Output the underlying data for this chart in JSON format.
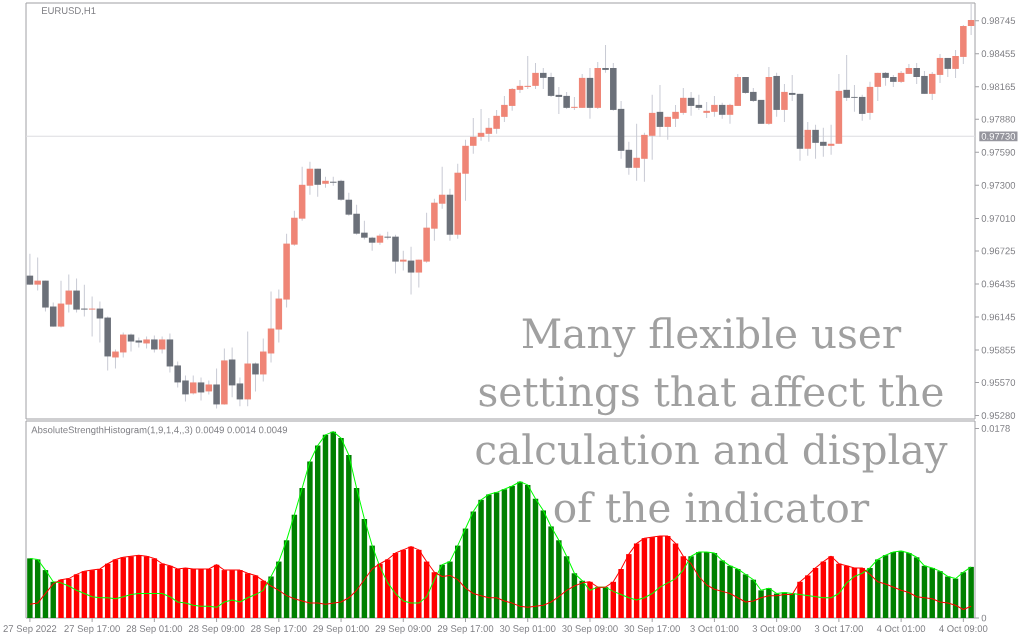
{
  "chart_data": [
    {
      "type": "candlestick",
      "title": "EURUSD,H1",
      "categories": [
        null,
        null,
        null,
        null,
        null,
        null,
        null,
        null,
        null,
        null,
        null,
        null,
        null,
        null,
        null,
        null,
        null,
        null,
        null,
        null,
        null,
        null,
        null,
        null,
        null,
        null,
        null,
        null,
        null,
        null,
        null,
        null,
        null,
        null,
        null,
        null,
        null,
        null,
        null,
        null,
        null,
        null,
        null,
        null,
        null,
        null,
        null,
        null,
        null,
        null,
        null,
        null,
        null,
        null,
        null,
        null,
        null,
        null,
        null,
        null,
        null,
        null,
        null,
        null,
        null,
        null,
        null,
        null,
        null,
        null,
        null,
        null,
        null,
        null,
        null,
        null,
        null,
        null,
        null,
        null,
        null,
        null,
        null,
        null,
        null,
        null,
        null,
        null,
        null,
        null,
        null,
        null,
        null,
        null,
        null,
        null,
        null,
        null,
        null,
        null,
        null,
        null,
        null,
        null,
        null,
        null,
        null,
        null,
        null,
        null,
        null,
        null,
        null,
        null,
        null,
        null,
        null,
        null,
        null,
        null,
        null,
        null
      ],
      "ohlc": [
        [
          0.96508,
          0.96701,
          0.96429,
          0.96429
        ],
        [
          0.96429,
          0.96666,
          0.96377,
          0.96464
        ],
        [
          0.96464,
          0.96464,
          0.96193,
          0.96228
        ],
        [
          0.96237,
          0.96272,
          0.96061,
          0.96061
        ],
        [
          0.96061,
          0.96464,
          0.96053,
          0.96263
        ],
        [
          0.96254,
          0.96517,
          0.96184,
          0.96377
        ],
        [
          0.96377,
          0.96482,
          0.96184,
          0.9621
        ],
        [
          0.96219,
          0.96429,
          0.96149,
          0.9621
        ],
        [
          0.9621,
          0.96324,
          0.95974,
          0.96219
        ],
        [
          0.96219,
          0.9628,
          0.95921,
          0.96132
        ],
        [
          0.9614,
          0.96149,
          0.95676,
          0.95799
        ],
        [
          0.9579,
          0.9586,
          0.95694,
          0.95842
        ],
        [
          0.95834,
          0.96009,
          0.9579,
          0.95991
        ],
        [
          0.95991,
          0.96,
          0.95842,
          0.9593
        ],
        [
          0.95939,
          0.95965,
          0.95878,
          0.95921
        ],
        [
          0.95913,
          0.95974,
          0.95869,
          0.95948
        ],
        [
          0.95948,
          0.95983,
          0.95834,
          0.9586
        ],
        [
          0.9586,
          0.95974,
          0.95825,
          0.95948
        ],
        [
          0.95948,
          0.96,
          0.95659,
          0.95711
        ],
        [
          0.9572,
          0.95755,
          0.95527,
          0.95571
        ],
        [
          0.95588,
          0.95632,
          0.95404,
          0.95466
        ],
        [
          0.95475,
          0.95632,
          0.95466,
          0.95571
        ],
        [
          0.95571,
          0.95615,
          0.95413,
          0.95483
        ],
        [
          0.95492,
          0.95588,
          0.95466,
          0.95553
        ],
        [
          0.95553,
          0.95694,
          0.95343,
          0.95378
        ],
        [
          0.95378,
          0.95869,
          0.95378,
          0.95764
        ],
        [
          0.95772,
          0.95878,
          0.9544,
          0.95545
        ],
        [
          0.95562,
          0.95615,
          0.95361,
          0.95422
        ],
        [
          0.95422,
          0.96018,
          0.95361,
          0.95737
        ],
        [
          0.95737,
          0.95746,
          0.95492,
          0.95641
        ],
        [
          0.95641,
          0.95956,
          0.9558,
          0.95842
        ],
        [
          0.95825,
          0.96368,
          0.95746,
          0.96044
        ],
        [
          0.96035,
          0.96386,
          0.95921,
          0.96307
        ],
        [
          0.96298,
          0.96876,
          0.96228,
          0.96789
        ],
        [
          0.9678,
          0.97078,
          0.96771,
          0.97016
        ],
        [
          0.97008,
          0.97463,
          0.9699,
          0.97305
        ],
        [
          0.97297,
          0.97507,
          0.97218,
          0.97446
        ],
        [
          0.97446,
          0.97446,
          0.972,
          0.97305
        ],
        [
          0.97314,
          0.97375,
          0.97279,
          0.9734
        ],
        [
          0.97332,
          0.97375,
          0.97297,
          0.97323
        ],
        [
          0.9734,
          0.97349,
          0.97165,
          0.97174
        ],
        [
          0.97174,
          0.97235,
          0.97034,
          0.97043
        ],
        [
          0.97051,
          0.9713,
          0.96867,
          0.96876
        ],
        [
          0.96885,
          0.9699,
          0.96824,
          0.96841
        ],
        [
          0.96841,
          0.9685,
          0.96727,
          0.96797
        ],
        [
          0.96797,
          0.96876,
          0.9678,
          0.96859
        ],
        [
          0.9685,
          0.96894,
          0.96824,
          0.96841
        ],
        [
          0.9685,
          0.96867,
          0.96526,
          0.96631
        ],
        [
          0.96631,
          0.96727,
          0.96552,
          0.96648
        ],
        [
          0.9664,
          0.96762,
          0.96342,
          0.96535
        ],
        [
          0.96535,
          0.96648,
          0.96403,
          0.96648
        ],
        [
          0.96631,
          0.9706,
          0.96622,
          0.96929
        ],
        [
          0.9692,
          0.97183,
          0.96815,
          0.97148
        ],
        [
          0.97139,
          0.97463,
          0.97095,
          0.97218
        ],
        [
          0.97218,
          0.9727,
          0.96815,
          0.96867
        ],
        [
          0.96867,
          0.97489,
          0.96832,
          0.97411
        ],
        [
          0.97402,
          0.977,
          0.97165,
          0.97647
        ],
        [
          0.97647,
          0.97892,
          0.97577,
          0.97726
        ],
        [
          0.97726,
          0.97971,
          0.97691,
          0.97761
        ],
        [
          0.97752,
          0.97892,
          0.97682,
          0.97805
        ],
        [
          0.97796,
          0.97962,
          0.97752,
          0.9791
        ],
        [
          0.97901,
          0.98085,
          0.97857,
          0.98006
        ],
        [
          0.97997,
          0.98155,
          0.97954,
          0.98146
        ],
        [
          0.98138,
          0.98225,
          0.98111,
          0.98173
        ],
        [
          0.98164,
          0.98435,
          0.98146,
          0.98173
        ],
        [
          0.98173,
          0.98374,
          0.98146,
          0.98287
        ],
        [
          0.98287,
          0.9833,
          0.98146,
          0.98243
        ],
        [
          0.98251,
          0.98287,
          0.98076,
          0.98085
        ],
        [
          0.98094,
          0.98164,
          0.97927,
          0.98076
        ],
        [
          0.98085,
          0.9812,
          0.97971,
          0.9798
        ],
        [
          0.9798,
          0.98076,
          0.97962,
          0.97989
        ],
        [
          0.9798,
          0.98278,
          0.9798,
          0.98243
        ],
        [
          0.98243,
          0.9833,
          0.97884,
          0.9798
        ],
        [
          0.9798,
          0.98383,
          0.97971,
          0.9833
        ],
        [
          0.9833,
          0.98532,
          0.98287,
          0.98313
        ],
        [
          0.9833,
          0.98374,
          0.97954,
          0.97962
        ],
        [
          0.97971,
          0.98041,
          0.97533,
          0.97603
        ],
        [
          0.97612,
          0.97682,
          0.97393,
          0.97454
        ],
        [
          0.97454,
          0.9784,
          0.9734,
          0.97542
        ],
        [
          0.97533,
          0.97761,
          0.97332,
          0.97743
        ],
        [
          0.97735,
          0.98094,
          0.97524,
          0.97936
        ],
        [
          0.97945,
          0.98181,
          0.97726,
          0.97813
        ],
        [
          0.97813,
          0.97901,
          0.977,
          0.97901
        ],
        [
          0.97884,
          0.98006,
          0.97813,
          0.97945
        ],
        [
          0.97936,
          0.98155,
          0.97919,
          0.98068
        ],
        [
          0.98068,
          0.9812,
          0.9791,
          0.97997
        ],
        [
          0.98006,
          0.98094,
          0.97962,
          0.9798
        ],
        [
          0.97936,
          0.98032,
          0.97892,
          0.97954
        ],
        [
          0.97945,
          0.98085,
          0.97901,
          0.98006
        ],
        [
          0.98006,
          0.98024,
          0.97884,
          0.97919
        ],
        [
          0.97919,
          0.98015,
          0.9784,
          0.98006
        ],
        [
          0.97997,
          0.98278,
          0.97997,
          0.98251
        ],
        [
          0.98251,
          0.98251,
          0.98103,
          0.98111
        ],
        [
          0.9812,
          0.98155,
          0.98032,
          0.98041
        ],
        [
          0.9805,
          0.9805,
          0.9784,
          0.9784
        ],
        [
          0.9784,
          0.98339,
          0.97831,
          0.98251
        ],
        [
          0.9826,
          0.98287,
          0.97901,
          0.97962
        ],
        [
          0.97962,
          0.9819,
          0.97857,
          0.9812
        ],
        [
          0.98111,
          0.98269,
          0.98041,
          0.98094
        ],
        [
          0.98103,
          0.98103,
          0.97516,
          0.97621
        ],
        [
          0.97621,
          0.97857,
          0.97559,
          0.97787
        ],
        [
          0.97787,
          0.97831,
          0.97533,
          0.97673
        ],
        [
          0.97682,
          0.97805,
          0.97551,
          0.97647
        ],
        [
          0.97647,
          0.97831,
          0.97568,
          0.97665
        ],
        [
          0.97665,
          0.98278,
          0.97665,
          0.98129
        ],
        [
          0.98138,
          0.98444,
          0.98041,
          0.98068
        ],
        [
          0.98076,
          0.98181,
          0.97945,
          0.98068
        ],
        [
          0.98076,
          0.98094,
          0.97866,
          0.97927
        ],
        [
          0.97936,
          0.98208,
          0.97875,
          0.98164
        ],
        [
          0.98164,
          0.98287,
          0.98041,
          0.98287
        ],
        [
          0.98287,
          0.98295,
          0.98173,
          0.98243
        ],
        [
          0.98251,
          0.98269,
          0.98164,
          0.98208
        ],
        [
          0.98208,
          0.98304,
          0.98199,
          0.98287
        ],
        [
          0.98278,
          0.98365,
          0.98278,
          0.9833
        ],
        [
          0.9833,
          0.98374,
          0.9819,
          0.98251
        ],
        [
          0.9826,
          0.98304,
          0.98103,
          0.98103
        ],
        [
          0.98103,
          0.98295,
          0.9805,
          0.98278
        ],
        [
          0.98269,
          0.98453,
          0.98199,
          0.98418
        ],
        [
          0.98418,
          0.98418,
          0.98251,
          0.98322
        ],
        [
          0.98322,
          0.98488,
          0.98243,
          0.98435
        ],
        [
          0.98427,
          0.98707,
          0.98365,
          0.98698
        ],
        [
          0.98698,
          0.98891,
          0.98619,
          0.98751
        ]
      ],
      "colors": [
        "#6b7079",
        "#ef8576",
        "#6b7079",
        "#6b7079",
        "#ef8576",
        "#ef8576",
        "#6b7079",
        "#6b7079",
        "#ef8576",
        "#6b7079",
        "#6b7079",
        "#ef8576",
        "#ef8576",
        "#6b7079",
        "#6b7079",
        "#ef8576",
        "#6b7079",
        "#ef8576",
        "#6b7079",
        "#6b7079",
        "#6b7079",
        "#ef8576",
        "#6b7079",
        "#ef8576",
        "#6b7079",
        "#ef8576",
        "#6b7079",
        "#6b7079",
        "#ef8576",
        "#6b7079",
        "#ef8576",
        "#ef8576",
        "#ef8576",
        "#ef8576",
        "#ef8576",
        "#ef8576",
        "#ef8576",
        "#6b7079",
        "#ef8576",
        "#6b7079",
        "#6b7079",
        "#6b7079",
        "#6b7079",
        "#6b7079",
        "#6b7079",
        "#ef8576",
        "#6b7079",
        "#6b7079",
        "#ef8576",
        "#6b7079",
        "#ef8576",
        "#ef8576",
        "#ef8576",
        "#ef8576",
        "#6b7079",
        "#ef8576",
        "#ef8576",
        "#ef8576",
        "#ef8576",
        "#ef8576",
        "#ef8576",
        "#ef8576",
        "#ef8576",
        "#ef8576",
        "#ef8576",
        "#ef8576",
        "#6b7079",
        "#6b7079",
        "#6b7079",
        "#6b7079",
        "#ef8576",
        "#ef8576",
        "#6b7079",
        "#ef8576",
        "#6b7079",
        "#6b7079",
        "#6b7079",
        "#6b7079",
        "#ef8576",
        "#ef8576",
        "#ef8576",
        "#6b7079",
        "#ef8576",
        "#ef8576",
        "#ef8576",
        "#6b7079",
        "#6b7079",
        "#ef8576",
        "#ef8576",
        "#6b7079",
        "#ef8576",
        "#ef8576",
        "#6b7079",
        "#6b7079",
        "#6b7079",
        "#ef8576",
        "#6b7079",
        "#ef8576",
        "#6b7079",
        "#6b7079",
        "#ef8576",
        "#6b7079",
        "#6b7079",
        "#ef8576",
        "#ef8576",
        "#6b7079",
        "#6b7079",
        "#6b7079",
        "#ef8576",
        "#ef8576",
        "#6b7079",
        "#6b7079",
        "#ef8576",
        "#ef8576",
        "#6b7079",
        "#6b7079",
        "#ef8576",
        "#ef8576",
        "#6b7079",
        "#ef8576",
        "#ef8576",
        "#ef8576"
      ],
      "ylim": [
        0.9525,
        0.989
      ],
      "yticks": [
        0.98745,
        0.98455,
        0.98165,
        {
          "value": 0.9788,
          "label": "0.97880"
        },
        {
          "value": 0.9759,
          "label": "0.97590"
        },
        {
          "value": 0.973,
          "label": "0.97300"
        },
        {
          "value": 0.9701,
          "label": "0.97010"
        },
        0.96725,
        0.96435,
        0.96145,
        0.95855,
        {
          "value": 0.9557,
          "label": "0.95570"
        },
        {
          "value": 0.9528,
          "label": "0.95280"
        }
      ],
      "ref_lines": [
        {
          "axis": "y",
          "value": 0.9773,
          "label": "0.97730",
          "color": "#dcdce0"
        }
      ],
      "tick_labels": "y",
      "annotations": [
        "Many flexible user settings that affect the calculation and display of the indicator"
      ]
    },
    {
      "type": "bar",
      "title": "AbsoluteStrengthHistogram(1,9,1,4,,3) 0.0049 0.0014 0.0049",
      "categories": [
        "27 Sep 2022",
        null,
        null,
        null,
        null,
        null,
        null,
        null,
        "27 Sep 17:00",
        null,
        null,
        null,
        null,
        null,
        null,
        null,
        "28 Sep 01:00",
        null,
        null,
        null,
        null,
        null,
        null,
        null,
        "28 Sep 09:00",
        null,
        null,
        null,
        null,
        null,
        null,
        null,
        "28 Sep 17:00",
        null,
        null,
        null,
        null,
        null,
        null,
        null,
        "29 Sep 01:00",
        null,
        null,
        null,
        null,
        null,
        null,
        null,
        "29 Sep 09:00",
        null,
        null,
        null,
        null,
        null,
        null,
        null,
        "29 Sep 17:00",
        null,
        null,
        null,
        null,
        null,
        null,
        null,
        "30 Sep 01:00",
        null,
        null,
        null,
        null,
        null,
        null,
        null,
        "30 Sep 09:00",
        null,
        null,
        null,
        null,
        null,
        null,
        null,
        "30 Sep 17:00",
        null,
        null,
        null,
        null,
        null,
        null,
        null,
        "3 Oct 01:00",
        null,
        null,
        null,
        null,
        null,
        null,
        null,
        "3 Oct 09:00",
        null,
        null,
        null,
        null,
        null,
        null,
        null,
        "3 Oct 17:00",
        null,
        null,
        null,
        null,
        null,
        null,
        null,
        "4 Oct 01:00",
        null,
        null,
        null,
        null,
        null,
        null,
        null,
        "4 Oct 09:00",
        null
      ],
      "series": [
        {
          "type": "bar",
          "values": [
            0.0056,
            0.0055,
            0.0045,
            0.0034,
            0.0036,
            0.0037,
            0.0041,
            0.0044,
            0.0045,
            0.0046,
            0.0051,
            0.0055,
            0.0057,
            0.0058,
            0.0059,
            0.0058,
            0.0056,
            0.0051,
            0.0049,
            0.0046,
            0.0047,
            0.0046,
            0.0046,
            0.0046,
            0.005,
            0.0045,
            0.0045,
            0.0045,
            0.0042,
            0.004,
            0.0035,
            0.0039,
            0.0053,
            0.0073,
            0.0097,
            0.0122,
            0.0147,
            0.0162,
            0.0172,
            0.0175,
            0.0169,
            0.0153,
            0.0122,
            0.0093,
            0.0068,
            0.0051,
            0.0055,
            0.0061,
            0.0064,
            0.0067,
            0.0064,
            0.0053,
            0.0043,
            0.005,
            0.0053,
            0.0068,
            0.0084,
            0.01,
            0.0111,
            0.0116,
            0.0118,
            0.0121,
            0.0124,
            0.0128,
            0.0125,
            0.0112,
            0.0101,
            0.0086,
            0.0073,
            0.0058,
            0.0042,
            0.0035,
            0.0034,
            0.0029,
            0.0029,
            0.0034,
            0.0046,
            0.006,
            0.007,
            0.0075,
            0.0076,
            0.0077,
            0.0077,
            0.007,
            0.0058,
            0.0058,
            0.0062,
            0.0062,
            0.0061,
            0.0054,
            0.0049,
            0.0046,
            0.0041,
            0.0036,
            0.0026,
            0.0028,
            0.0023,
            0.0024,
            0.0023,
            0.0034,
            0.004,
            0.0047,
            0.0053,
            0.0058,
            0.0051,
            0.0049,
            0.0047,
            0.0047,
            0.0047,
            0.0055,
            0.0059,
            0.0062,
            0.0063,
            0.0061,
            0.0057,
            0.0049,
            0.0047,
            0.0044,
            0.0039,
            0.0037,
            0.0043,
            0.0048
          ],
          "colors": [
            "#008000",
            "#008000",
            "#008000",
            "#008000",
            "#ff0000",
            "#ff0000",
            "#ff0000",
            "#ff0000",
            "#ff0000",
            "#ff0000",
            "#ff0000",
            "#ff0000",
            "#ff0000",
            "#ff0000",
            "#ff0000",
            "#ff0000",
            "#ff0000",
            "#ff0000",
            "#ff0000",
            "#ff0000",
            "#ff0000",
            "#ff0000",
            "#ff0000",
            "#ff0000",
            "#ff0000",
            "#ff0000",
            "#ff0000",
            "#ff0000",
            "#ff0000",
            "#ff0000",
            "#ff0000",
            "#008000",
            "#008000",
            "#008000",
            "#008000",
            "#008000",
            "#008000",
            "#008000",
            "#008000",
            "#008000",
            "#008000",
            "#008000",
            "#008000",
            "#008000",
            "#008000",
            "#ff0000",
            "#ff0000",
            "#ff0000",
            "#ff0000",
            "#ff0000",
            "#ff0000",
            "#ff0000",
            "#ff0000",
            "#008000",
            "#008000",
            "#008000",
            "#008000",
            "#008000",
            "#008000",
            "#008000",
            "#008000",
            "#008000",
            "#008000",
            "#008000",
            "#008000",
            "#008000",
            "#008000",
            "#008000",
            "#008000",
            "#008000",
            "#008000",
            "#008000",
            "#ff0000",
            "#ff0000",
            "#008000",
            "#ff0000",
            "#ff0000",
            "#ff0000",
            "#ff0000",
            "#ff0000",
            "#ff0000",
            "#ff0000",
            "#ff0000",
            "#ff0000",
            "#ff0000",
            "#008000",
            "#008000",
            "#008000",
            "#008000",
            "#008000",
            "#008000",
            "#008000",
            "#008000",
            "#008000",
            "#008000",
            "#008000",
            "#008000",
            "#008000",
            "#008000",
            "#ff0000",
            "#ff0000",
            "#ff0000",
            "#ff0000",
            "#ff0000",
            "#ff0000",
            "#ff0000",
            "#ff0000",
            "#ff0000",
            "#008000",
            "#008000",
            "#008000",
            "#008000",
            "#008000",
            "#008000",
            "#008000",
            "#008000",
            "#008000",
            "#008000",
            "#008000",
            "#008000",
            "#008000",
            "#008000"
          ]
        },
        {
          "type": "line",
          "color": "#00ff00",
          "values": [
            0.0056,
            0.0055,
            0.0045,
            0.0034,
            0.0033,
            0.003,
            0.0026,
            0.0023,
            0.002,
            0.0019,
            0.0019,
            0.0018,
            0.002,
            0.0022,
            0.0023,
            0.0023,
            0.0023,
            0.0023,
            0.002,
            0.0015,
            0.0014,
            0.0012,
            0.0011,
            0.0011,
            0.001,
            0.0015,
            0.0017,
            0.0015,
            0.0019,
            0.0022,
            0.0026,
            0.0039,
            0.0053,
            0.0073,
            0.0097,
            0.0122,
            0.0147,
            0.0162,
            0.0172,
            0.0175,
            0.0169,
            0.0153,
            0.0122,
            0.0093,
            0.0068,
            0.0048,
            0.0033,
            0.0023,
            0.0016,
            0.0014,
            0.0014,
            0.002,
            0.0036,
            0.005,
            0.0053,
            0.0068,
            0.0084,
            0.01,
            0.0111,
            0.0116,
            0.0118,
            0.0121,
            0.0124,
            0.0128,
            0.0125,
            0.0112,
            0.0101,
            0.0086,
            0.0073,
            0.0058,
            0.0042,
            0.0035,
            0.0026,
            0.0029,
            0.0029,
            0.0025,
            0.0022,
            0.0019,
            0.0017,
            0.0019,
            0.0023,
            0.0029,
            0.0033,
            0.0037,
            0.0045,
            0.0058,
            0.0062,
            0.0062,
            0.0061,
            0.0054,
            0.0049,
            0.0046,
            0.0041,
            0.0036,
            0.0026,
            0.0028,
            0.0023,
            0.0024,
            0.0023,
            0.0022,
            0.0021,
            0.002,
            0.0019,
            0.0019,
            0.0023,
            0.0033,
            0.0039,
            0.0042,
            0.0047,
            0.0055,
            0.0059,
            0.0062,
            0.0063,
            0.0061,
            0.0057,
            0.0049,
            0.0047,
            0.0044,
            0.0039,
            0.0037,
            0.0043,
            0.0048
          ]
        },
        {
          "type": "line",
          "color": "#ff0000",
          "values": [
            0.0013,
            0.0014,
            0.0023,
            0.0032,
            0.0036,
            0.0037,
            0.0041,
            0.0044,
            0.0045,
            0.0046,
            0.0051,
            0.0055,
            0.0057,
            0.0058,
            0.0059,
            0.0058,
            0.0056,
            0.0051,
            0.0049,
            0.0046,
            0.0047,
            0.0046,
            0.0046,
            0.0046,
            0.005,
            0.0045,
            0.0045,
            0.0045,
            0.0042,
            0.004,
            0.0035,
            0.003,
            0.0026,
            0.0021,
            0.0018,
            0.0016,
            0.0014,
            0.0014,
            0.0013,
            0.0014,
            0.0015,
            0.0019,
            0.0026,
            0.0036,
            0.0046,
            0.0051,
            0.0055,
            0.0061,
            0.0064,
            0.0067,
            0.0064,
            0.0053,
            0.0043,
            0.0039,
            0.004,
            0.0036,
            0.0028,
            0.0023,
            0.0021,
            0.0019,
            0.0019,
            0.0016,
            0.0014,
            0.0011,
            0.001,
            0.0011,
            0.0012,
            0.0015,
            0.002,
            0.0026,
            0.003,
            0.0033,
            0.0034,
            0.0029,
            0.0029,
            0.0034,
            0.0046,
            0.006,
            0.007,
            0.0075,
            0.0076,
            0.0077,
            0.0077,
            0.007,
            0.0058,
            0.0051,
            0.0039,
            0.0031,
            0.0027,
            0.0025,
            0.0023,
            0.0019,
            0.0015,
            0.0016,
            0.0019,
            0.0021,
            0.0021,
            0.0022,
            0.0022,
            0.0034,
            0.004,
            0.0047,
            0.0053,
            0.0058,
            0.0051,
            0.0049,
            0.0047,
            0.0047,
            0.0041,
            0.0034,
            0.0032,
            0.0029,
            0.0026,
            0.0024,
            0.002,
            0.0019,
            0.0018,
            0.0015,
            0.0014,
            0.0012,
            0.0008,
            0.0011
          ]
        }
      ],
      "ylim": [
        0,
        0.0185
      ],
      "yticks": [
        0,
        0.0178
      ]
    }
  ]
}
